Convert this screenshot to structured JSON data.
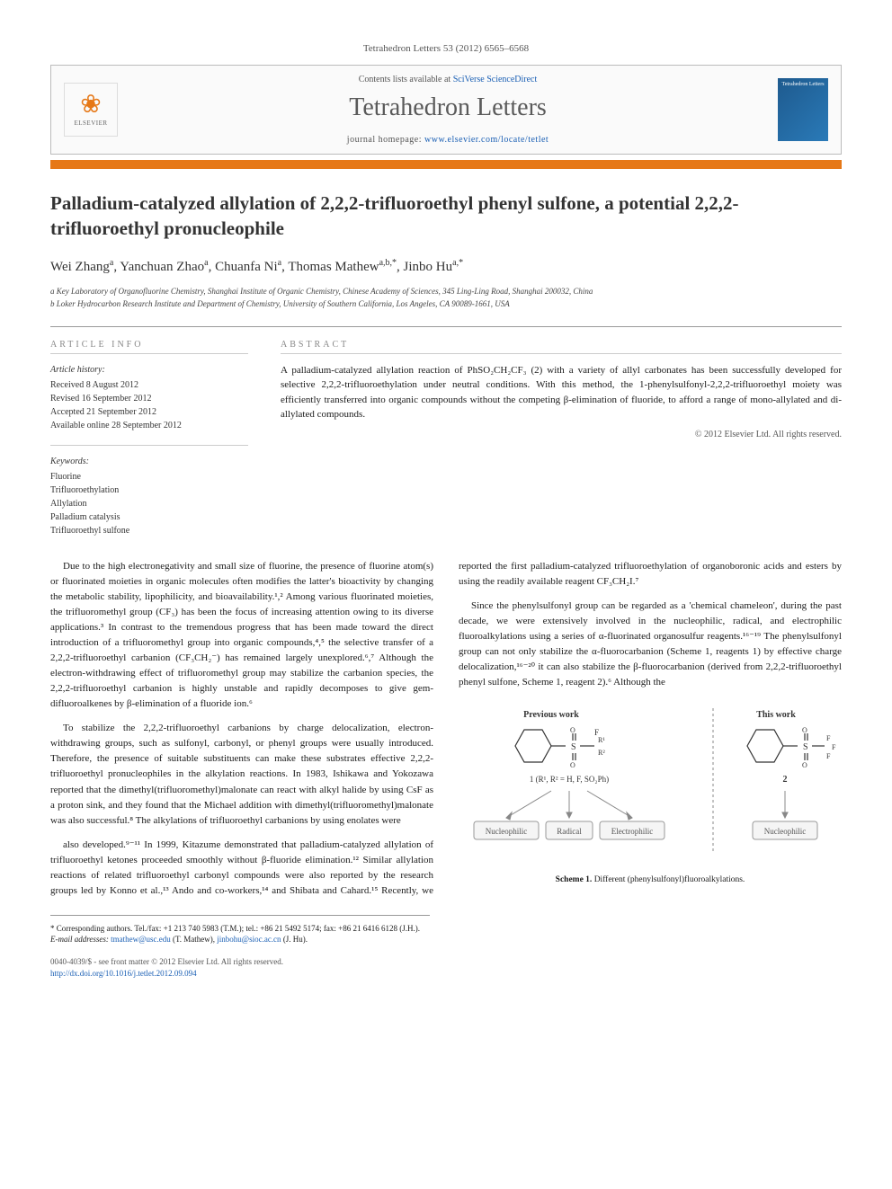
{
  "journal_ref": "Tetrahedron Letters 53 (2012) 6565–6568",
  "banner": {
    "contents_prefix": "Contents lists available at ",
    "contents_link": "SciVerse ScienceDirect",
    "journal_title": "Tetrahedron Letters",
    "homepage_prefix": "journal homepage: ",
    "homepage_url": "www.elsevier.com/locate/tetlet",
    "elsevier_label": "ELSEVIER",
    "cover_label": "Tetrahedron Letters"
  },
  "title": "Palladium-catalyzed allylation of 2,2,2-trifluoroethyl phenyl sulfone, a potential 2,2,2-trifluoroethyl pronucleophile",
  "authors_html": "Wei Zhang<sup>a</sup>, Yanchuan Zhao<sup>a</sup>, Chuanfa Ni<sup>a</sup>, Thomas Mathew<sup>a,b,*</sup>, Jinbo Hu<sup>a,*</sup>",
  "affiliations": [
    "a Key Laboratory of Organofluorine Chemistry, Shanghai Institute of Organic Chemistry, Chinese Academy of Sciences, 345 Ling-Ling Road, Shanghai 200032, China",
    "b Loker Hydrocarbon Research Institute and Department of Chemistry, University of Southern California, Los Angeles, CA 90089-1661, USA"
  ],
  "info": {
    "heading": "ARTICLE INFO",
    "history_subhead": "Article history:",
    "history": [
      "Received 8 August 2012",
      "Revised 16 September 2012",
      "Accepted 21 September 2012",
      "Available online 28 September 2012"
    ],
    "keywords_subhead": "Keywords:",
    "keywords": [
      "Fluorine",
      "Trifluoroethylation",
      "Allylation",
      "Palladium catalysis",
      "Trifluoroethyl sulfone"
    ]
  },
  "abstract": {
    "heading": "ABSTRACT",
    "text": "A palladium-catalyzed allylation reaction of PhSO₂CH₂CF₃ (2) with a variety of allyl carbonates has been successfully developed for selective 2,2,2-trifluoroethylation under neutral conditions. With this method, the 1-phenylsulfonyl-2,2,2-trifluoroethyl moiety was efficiently transferred into organic compounds without the competing β-elimination of fluoride, to afford a range of mono-allylated and di-allylated compounds.",
    "copyright": "© 2012 Elsevier Ltd. All rights reserved."
  },
  "body": {
    "p1": "Due to the high electronegativity and small size of fluorine, the presence of fluorine atom(s) or fluorinated moieties in organic molecules often modifies the latter's bioactivity by changing the metabolic stability, lipophilicity, and bioavailability.¹,² Among various fluorinated moieties, the trifluoromethyl group (CF₃) has been the focus of increasing attention owing to its diverse applications.³ In contrast to the tremendous progress that has been made toward the direct introduction of a trifluoromethyl group into organic compounds,⁴,⁵ the selective transfer of a 2,2,2-trifluoroethyl carbanion (CF₃CH₂⁻) has remained largely unexplored.⁶,⁷ Although the electron-withdrawing effect of trifluoromethyl group may stabilize the carbanion species, the 2,2,2-trifluoroethyl carbanion is highly unstable and rapidly decomposes to give gem-difluoroalkenes by β-elimination of a fluoride ion.⁶",
    "p2": "To stabilize the 2,2,2-trifluoroethyl carbanions by charge delocalization, electron-withdrawing groups, such as sulfonyl, carbonyl, or phenyl groups were usually introduced. Therefore, the presence of suitable substituents can make these substrates effective 2,2,2-trifluoroethyl pronucleophiles in the alkylation reactions. In 1983, Ishikawa and Yokozawa reported that the dimethyl(trifluoromethyl)malonate can react with alkyl halide by using CsF as a proton sink, and they found that the Michael addition with dimethyl(trifluoromethyl)malonate was also successful.⁸ The alkylations of trifluoroethyl carbanions by using enolates were",
    "p3": "also developed.⁹⁻¹¹ In 1999, Kitazume demonstrated that palladium-catalyzed allylation of trifluoroethyl ketones proceeded smoothly without β-fluoride elimination.¹² Similar allylation reactions of related trifluoroethyl carbonyl compounds were also reported by the research groups led by Konno et al.,¹³ Ando and co-workers,¹⁴ and Shibata and Cahard.¹⁵ Recently, we reported the first palladium-catalyzed trifluoroethylation of organoboronic acids and esters by using the readily available reagent CF₃CH₂I.⁷",
    "p4": "Since the phenylsulfonyl group can be regarded as a 'chemical chameleon', during the past decade, we were extensively involved in the nucleophilic, radical, and electrophilic fluoroalkylations using a series of α-fluorinated organosulfur reagents.¹⁶⁻¹⁹ The phenylsulfonyl group can not only stabilize the α-fluorocarbanion (Scheme 1, reagents 1) by effective charge delocalization,¹⁶⁻²⁰ it can also stabilize the β-fluorocarbanion (derived from 2,2,2-trifluoroethyl phenyl sulfone, Scheme 1, reagent 2).⁶ Although the"
  },
  "scheme1": {
    "prev_label": "Previous work",
    "this_label": "This work",
    "compound1": "1 (R¹, R² = H, F, SO₂Ph)",
    "compound2": "2",
    "boxes": [
      "Nucleophilic",
      "Radical",
      "Electrophilic",
      "Nucleophilic"
    ],
    "caption_bold": "Scheme 1.",
    "caption_rest": " Different (phenylsulfonyl)fluoroalkylations.",
    "colors": {
      "arrow": "#888888",
      "box_border": "#999999",
      "box_fill": "#f5f5f5",
      "divider": "#888888",
      "text": "#333333"
    }
  },
  "footnotes": {
    "corr": "* Corresponding authors. Tel./fax: +1 213 740 5983 (T.M.); tel.: +86 21 5492 5174; fax: +86 21 6416 6128 (J.H.).",
    "email_label": "E-mail addresses:",
    "email1": "tmathew@usc.edu",
    "email1_who": " (T. Mathew), ",
    "email2": "jinbohu@sioc.ac.cn",
    "email2_who": " (J. Hu)."
  },
  "journal_footer": {
    "line1": "0040-4039/$ - see front matter © 2012 Elsevier Ltd. All rights reserved.",
    "doi": "http://dx.doi.org/10.1016/j.tetlet.2012.09.094"
  }
}
